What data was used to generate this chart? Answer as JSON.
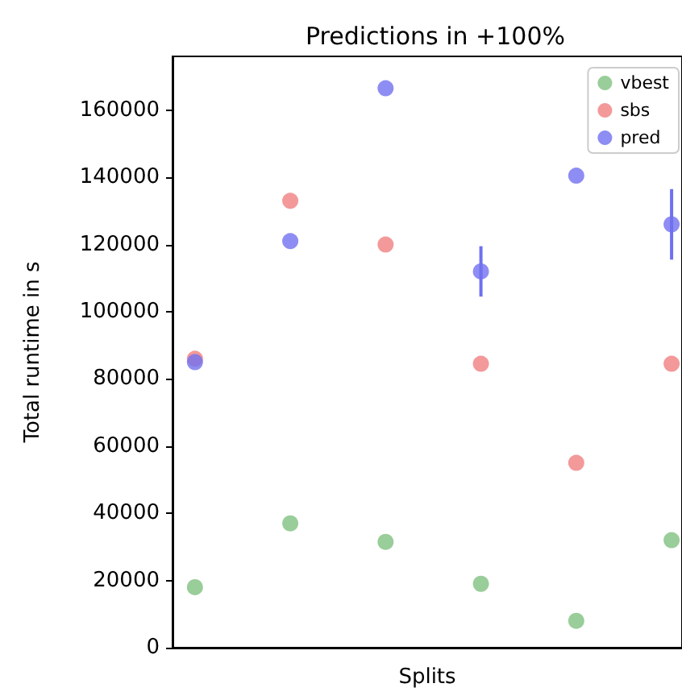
{
  "chart_data": {
    "type": "scatter",
    "title": "Predictions in +100%",
    "xlabel": "Splits",
    "ylabel": "Total runtime in s",
    "categories": [
      null,
      null,
      null,
      null,
      null,
      null
    ],
    "series": [
      {
        "name": "vbest",
        "color": "#80c080",
        "values": [
          18000,
          37000,
          31500,
          19000,
          8000,
          32000
        ]
      },
      {
        "name": "sbs",
        "color": "#f08080",
        "values": [
          86000,
          133000,
          120000,
          84500,
          55000,
          84500
        ]
      },
      {
        "name": "pred",
        "color": "#7070f0",
        "values": [
          85000,
          121000,
          166500,
          112000,
          140500,
          126000
        ],
        "errors": [
          null,
          null,
          null,
          7500,
          null,
          10500
        ]
      }
    ],
    "ylim": [
      0,
      176000
    ],
    "yticks": [
      0,
      20000,
      40000,
      60000,
      80000,
      100000,
      120000,
      140000,
      160000
    ],
    "grid": false,
    "legend": "top right",
    "marker": "circle"
  }
}
